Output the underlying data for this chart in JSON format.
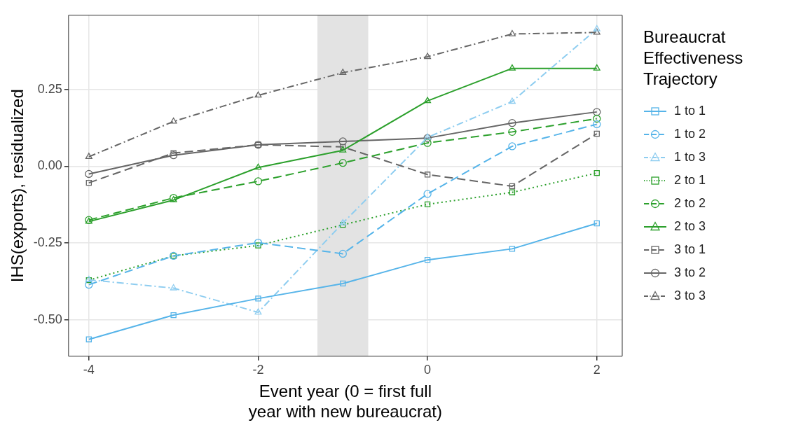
{
  "chart_data": {
    "type": "line",
    "xlabel": "Event year (0 = first full year with new bureaucrat)",
    "ylabel": "IHS(exports), residualized",
    "legend_title": "Bureaucrat Effectiveness Trajectory",
    "legend": "right",
    "grid": true,
    "x": [
      -4,
      -3,
      -2,
      -1,
      0,
      1,
      2
    ],
    "xlim": [
      -4.24,
      2.3
    ],
    "xticks": [
      -4,
      -2,
      0,
      2
    ],
    "ylim": [
      -0.619,
      0.492
    ],
    "yticks": [
      {
        "value": -0.5,
        "label": "-0.50"
      },
      {
        "value": -0.25,
        "label": "-0.25"
      },
      {
        "value": 0,
        "label": "0.00"
      },
      {
        "value": 0.25,
        "label": "0.25"
      }
    ],
    "bands": [
      {
        "axis": "x",
        "from": -1.3,
        "to": -0.7,
        "color": "#e3e3e3"
      }
    ],
    "series": [
      {
        "name": "1 to 1",
        "color": "#56b4e9",
        "line_style": "solid",
        "marker": "square",
        "values": [
          -0.564,
          -0.485,
          -0.431,
          -0.382,
          -0.305,
          -0.269,
          -0.186
        ]
      },
      {
        "name": "1 to 2",
        "color": "#56b4e9",
        "line_style": "dashed",
        "marker": "circle",
        "values": [
          -0.386,
          -0.292,
          -0.249,
          -0.285,
          -0.09,
          0.065,
          0.137
        ]
      },
      {
        "name": "1 to 3",
        "color": "#8ecdf0",
        "line_style": "dashdot",
        "marker": "triangle",
        "values": [
          -0.37,
          -0.397,
          -0.476,
          -0.185,
          0.094,
          0.211,
          0.447
        ]
      },
      {
        "name": "2 to 1",
        "color": "#2ca02c",
        "line_style": "dotted",
        "marker": "square",
        "values": [
          -0.371,
          -0.292,
          -0.258,
          -0.191,
          -0.124,
          -0.085,
          -0.022
        ]
      },
      {
        "name": "2 to 2",
        "color": "#2ca02c",
        "line_style": "dashed",
        "marker": "circle",
        "values": [
          -0.175,
          -0.103,
          -0.049,
          0.011,
          0.076,
          0.112,
          0.155
        ]
      },
      {
        "name": "2 to 3",
        "color": "#2ca02c",
        "line_style": "solid",
        "marker": "triangle",
        "values": [
          -0.18,
          -0.11,
          -0.004,
          0.052,
          0.213,
          0.319,
          0.319
        ]
      },
      {
        "name": "3 to 1",
        "color": "#666666",
        "line_style": "dashed",
        "marker": "square",
        "values": [
          -0.054,
          0.043,
          0.07,
          0.063,
          -0.027,
          -0.065,
          0.106
        ]
      },
      {
        "name": "3 to 2",
        "color": "#666666",
        "line_style": "solid",
        "marker": "circle",
        "values": [
          -0.025,
          0.036,
          0.07,
          0.081,
          0.092,
          0.141,
          0.177
        ]
      },
      {
        "name": "3 to 3",
        "color": "#666666",
        "line_style": "dashdot",
        "marker": "triangle",
        "values": [
          0.031,
          0.146,
          0.231,
          0.305,
          0.357,
          0.431,
          0.436
        ]
      }
    ]
  }
}
